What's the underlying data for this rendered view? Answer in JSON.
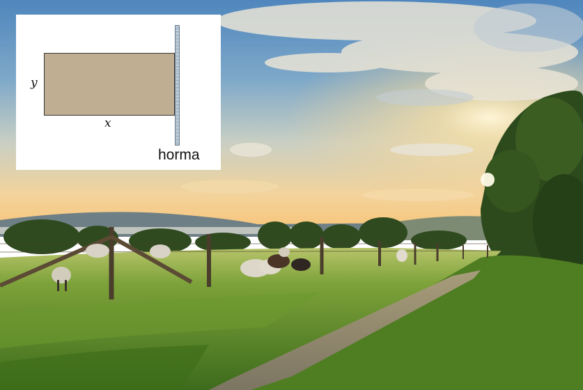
{
  "diagram": {
    "label_y": "y",
    "label_x": "x",
    "label_wall": "horma",
    "field_color": "#c0ae93",
    "wall_color": "#9fb3c6"
  },
  "scene": {
    "subject": "sunset-pasture-with-grazing-sheep",
    "sky_colors": [
      "#5f93c4",
      "#a9c3d6",
      "#f2d6a0"
    ],
    "grass_color": "#5f8f2a"
  }
}
